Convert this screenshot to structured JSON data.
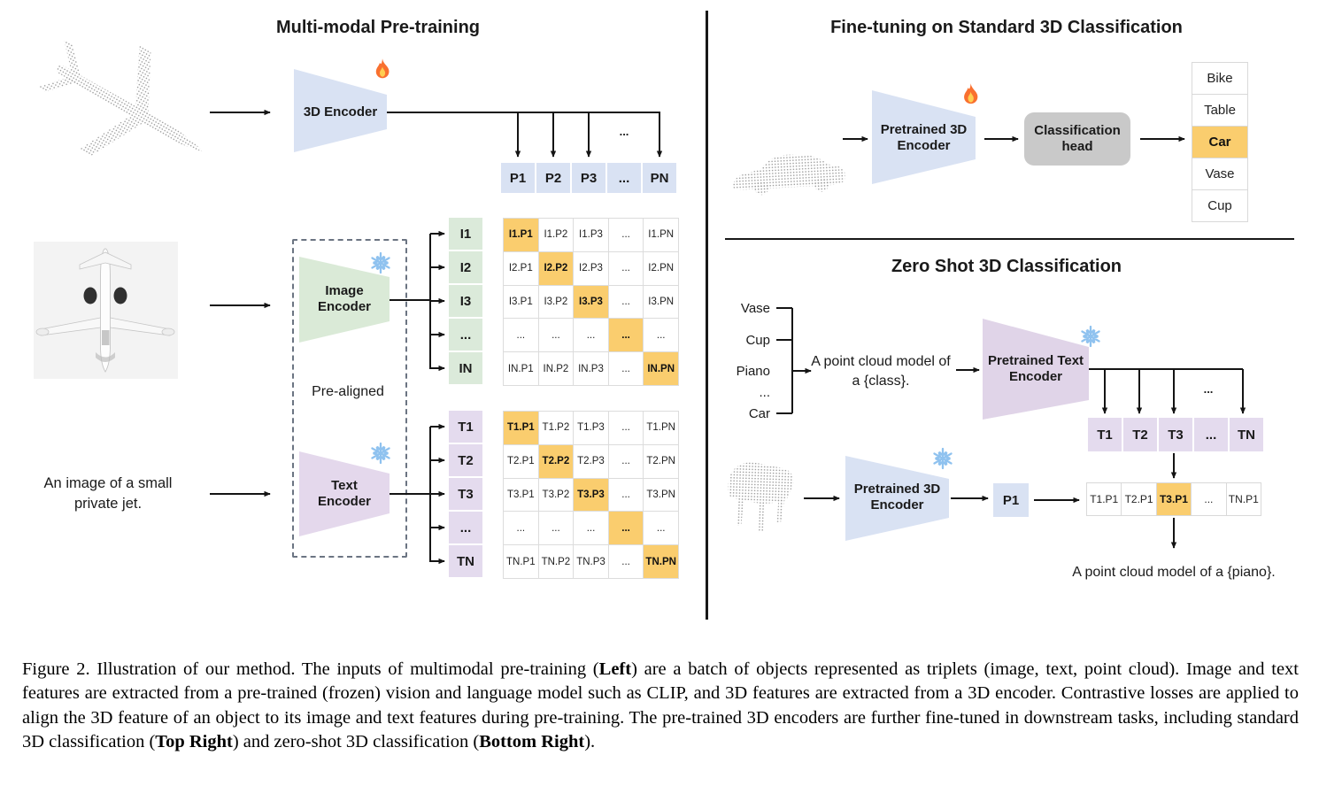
{
  "left": {
    "title": "Multi-modal Pre-training",
    "encoder_3d": "3D Encoder",
    "image_encoder": "Image\nEncoder",
    "text_encoder": "Text\nEncoder",
    "prealigned": "Pre-aligned",
    "text_prompt": "An image of a small\nprivate jet.",
    "p_row": [
      "P1",
      "P2",
      "P3",
      "...",
      "PN"
    ],
    "p_dots": "...",
    "i_labels": [
      "I1",
      "I2",
      "I3",
      "...",
      "IN"
    ],
    "t_labels": [
      "T1",
      "T2",
      "T3",
      "...",
      "TN"
    ],
    "i_matrix": [
      [
        "I1.P1",
        "I1.P2",
        "I1.P3",
        "...",
        "I1.PN"
      ],
      [
        "I2.P1",
        "I2.P2",
        "I2.P3",
        "...",
        "I2.PN"
      ],
      [
        "I3.P1",
        "I3.P2",
        "I3.P3",
        "...",
        "I3.PN"
      ],
      [
        "...",
        "...",
        "...",
        "...",
        "..."
      ],
      [
        "IN.P1",
        "IN.P2",
        "IN.P3",
        "...",
        "IN.PN"
      ]
    ],
    "t_matrix": [
      [
        "T1.P1",
        "T1.P2",
        "T1.P3",
        "...",
        "T1.PN"
      ],
      [
        "T2.P1",
        "T2.P2",
        "T2.P3",
        "...",
        "T2.PN"
      ],
      [
        "T3.P1",
        "T3.P2",
        "T3.P3",
        "...",
        "T3.PN"
      ],
      [
        "...",
        "...",
        "...",
        "...",
        "..."
      ],
      [
        "TN.P1",
        "TN.P2",
        "TN.P3",
        "...",
        "TN.PN"
      ]
    ]
  },
  "top_right": {
    "title": "Fine-tuning on Standard 3D Classification",
    "encoder": "Pretrained 3D\nEncoder",
    "head": "Classification\nhead",
    "classes": [
      "Bike",
      "Table",
      "Car",
      "Vase",
      "Cup"
    ],
    "highlight_class": "Car"
  },
  "bottom_right": {
    "title": "Zero Shot 3D Classification",
    "class_list": [
      "Vase",
      "Cup",
      "Piano",
      "...",
      "Car"
    ],
    "prompt": "A point cloud model of\na {class}.",
    "text_encoder": "Pretrained Text\nEncoder",
    "encoder_3d": "Pretrained 3D\nEncoder",
    "t_row": [
      "T1",
      "T2",
      "T3",
      "...",
      "TN"
    ],
    "t_dots": "...",
    "p_cell": "P1",
    "tp_row": [
      "T1.P1",
      "T2.P1",
      "T3.P1",
      "...",
      "TN.P1"
    ],
    "tp_highlight_index": 2,
    "result": "A point cloud model of a {piano}."
  },
  "icons": {
    "trainable": "fire-icon",
    "frozen": "snowflake-icon"
  },
  "colors": {
    "blue": "#D9E2F3",
    "green": "#DBEADA",
    "purple": "#E4DBEE",
    "highlight": "#FACD6E",
    "head_gray": "#C9C9C9"
  },
  "caption": {
    "segments": [
      {
        "t": "Figure 2. Illustration of our method. The inputs of multimodal pre-training ("
      },
      {
        "t": "Left",
        "b": true
      },
      {
        "t": ") are a batch of objects represented as triplets (image, text, point cloud). Image and text features are extracted from a pre-trained (frozen) vision and language model such as CLIP, and 3D features are extracted from a 3D encoder. Contrastive losses are applied to align the 3D feature of an object to its image and text features during pre-training. The pre-trained 3D encoders are further fine-tuned in downstream tasks, including standard 3D classification ("
      },
      {
        "t": "Top Right",
        "b": true
      },
      {
        "t": ") and zero-shot 3D classification ("
      },
      {
        "t": "Bottom Right",
        "b": true
      },
      {
        "t": ")."
      }
    ]
  }
}
